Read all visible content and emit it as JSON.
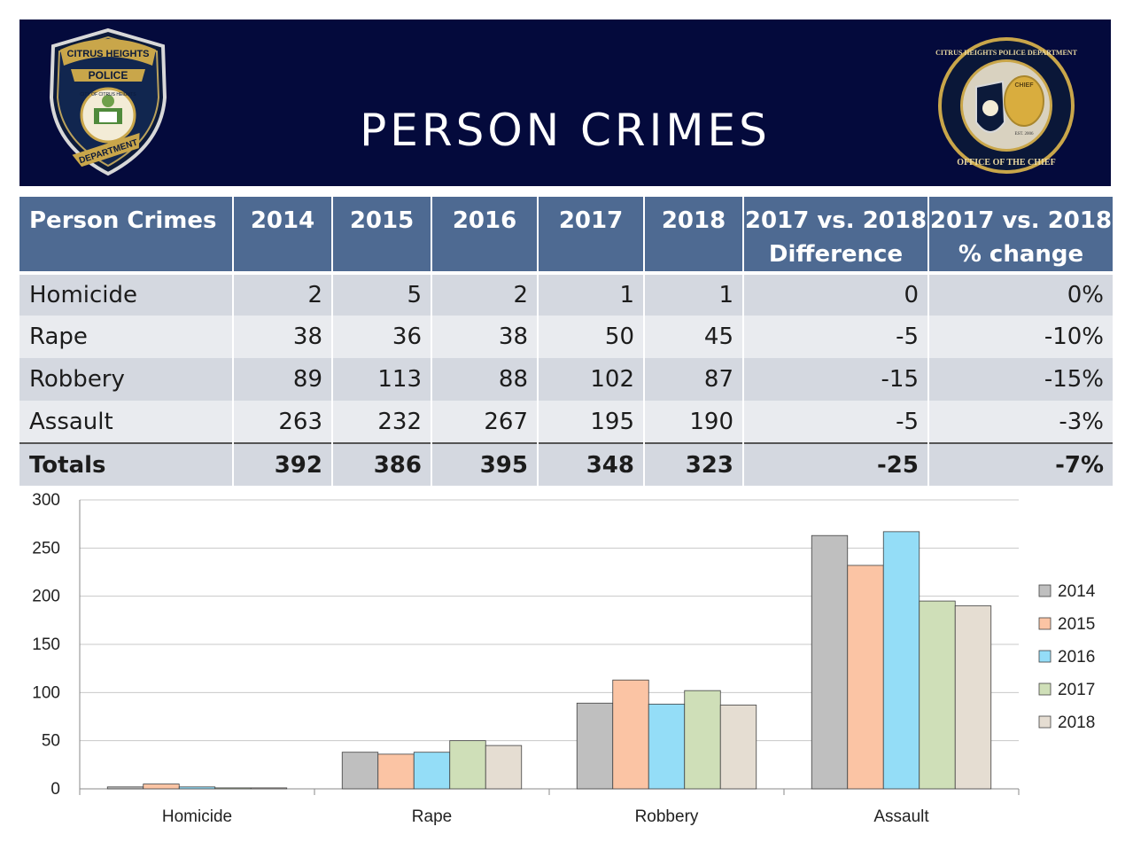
{
  "slide": {
    "title": "PERSON CRIMES"
  },
  "logo_left": {
    "top_text": "CITRUS HEIGHTS",
    "center_text": "POLICE",
    "bottom_text": "DEPARTMENT",
    "ring_text": "CITY OF CITRUS HEIGHTS"
  },
  "logo_right": {
    "ring_text": "CITRUS HEIGHTS POLICE DEPARTMENT",
    "bottom_text": "OFFICE OF THE CHIEF",
    "badge_text": "CHIEF",
    "est_text": "EST. 2006"
  },
  "table": {
    "headers": [
      "Person Crimes",
      "2014",
      "2015",
      "2016",
      "2017",
      "2018",
      "2017 vs. 2018 Difference",
      "2017 vs. 2018 % change"
    ],
    "rows": [
      [
        "Homicide",
        "2",
        "5",
        "2",
        "1",
        "1",
        "0",
        "0%"
      ],
      [
        "Rape",
        "38",
        "36",
        "38",
        "50",
        "45",
        "-5",
        "-10%"
      ],
      [
        "Robbery",
        "89",
        "113",
        "88",
        "102",
        "87",
        "-15",
        "-15%"
      ],
      [
        "Assault",
        "263",
        "232",
        "267",
        "195",
        "190",
        "-5",
        "-3%"
      ]
    ],
    "totals": [
      "Totals",
      "392",
      "386",
      "395",
      "348",
      "323",
      "-25",
      "-7%"
    ]
  },
  "chart_data": {
    "type": "bar",
    "categories": [
      "Homicide",
      "Rape",
      "Robbery",
      "Assault"
    ],
    "series": [
      {
        "name": "2014",
        "values": [
          2,
          38,
          89,
          263
        ],
        "color": "#bfbfbf"
      },
      {
        "name": "2015",
        "values": [
          5,
          36,
          113,
          232
        ],
        "color": "#fbc4a4"
      },
      {
        "name": "2016",
        "values": [
          2,
          38,
          88,
          267
        ],
        "color": "#94ddf7"
      },
      {
        "name": "2017",
        "values": [
          1,
          50,
          102,
          195
        ],
        "color": "#cfdfb8"
      },
      {
        "name": "2018",
        "values": [
          1,
          45,
          87,
          190
        ],
        "color": "#e5ddd2"
      }
    ],
    "yticks": [
      0,
      50,
      100,
      150,
      200,
      250,
      300
    ],
    "ylim": [
      0,
      300
    ],
    "grid": true,
    "legend": "right"
  }
}
